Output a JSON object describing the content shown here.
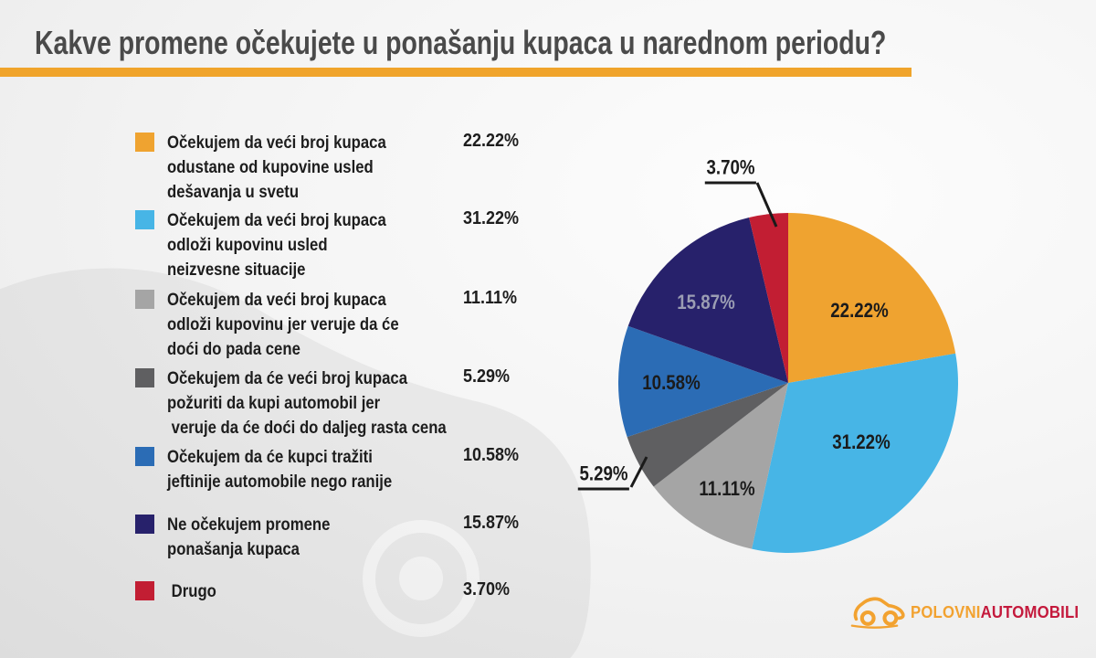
{
  "title": "Kakve promene očekujete u ponašanju kupaca u narednom periodu?",
  "accent_color": "#F0A42B",
  "chart_data": {
    "type": "pie",
    "title": "Kakve promene očekujete u ponašanju kupaca u narednom periodu?",
    "direction": "clockwise",
    "start_angle_deg": 0,
    "slices": [
      {
        "label": "Očekujem da veći broj kupaca odustane od kupovine usled dešavanja u svetu",
        "value": 22.22,
        "display": "22.22%",
        "color": "#EFA330",
        "label_color": "#1b1b1b"
      },
      {
        "label": "Očekujem da veći broj kupaca odloži kupovinu usled neizvesne situacije",
        "value": 31.22,
        "display": "31.22%",
        "color": "#47B5E6",
        "label_color": "#1b1b1b"
      },
      {
        "label": "Očekujem da veći broj kupaca odloži kupovinu jer veruje da će doći do pada cene",
        "value": 11.11,
        "display": "11.11%",
        "color": "#A5A5A5",
        "label_color": "#1b1b1b"
      },
      {
        "label": "Očekujem da će veći broj kupaca požuriti da kupi automobil jer veruje da će doći do daljeg rasta cena",
        "value": 5.29,
        "display": "5.29%",
        "color": "#5F5F61",
        "label_color": "#1b1b1b"
      },
      {
        "label": "Očekujem da će kupci tražiti jeftinije automobile nego ranije",
        "value": 10.58,
        "display": "10.58%",
        "color": "#2B6CB5",
        "label_color": "#1b1b1b"
      },
      {
        "label": "Ne očekujem promene ponašanja kupaca",
        "value": 15.87,
        "display": "15.87%",
        "color": "#27216B",
        "label_color": "#9B9DB3"
      },
      {
        "label": "Drugo",
        "value": 3.7,
        "display": "3.70%",
        "color": "#C21E33",
        "label_color": "#1b1b1b"
      }
    ]
  },
  "legend": {
    "items": [
      {
        "lines": [
          "Očekujem da veći broj kupaca",
          "odustane od kupovine usled",
          "dešavanja u svetu"
        ],
        "value": "22.22%"
      },
      {
        "lines": [
          "Očekujem da veći broj kupaca",
          "odloži kupovinu usled",
          "neizvesne situacije"
        ],
        "value": "31.22%"
      },
      {
        "lines": [
          "Očekujem da veći broj kupaca",
          "odloži kupovinu jer veruje da će",
          "doći do pada cene"
        ],
        "value": "11.11%"
      },
      {
        "lines": [
          "Očekujem da će veći broj kupaca",
          "požuriti da kupi automobil jer",
          " veruje da će doći do daljeg rasta cena"
        ],
        "value": "5.29%"
      },
      {
        "lines": [
          "Očekujem da će kupci tražiti",
          "jeftinije automobile nego ranije"
        ],
        "value": "10.58%"
      },
      {
        "lines": [
          "Ne očekujem promene",
          "ponašanja kupaca"
        ],
        "value": "15.87%"
      },
      {
        "lines": [
          " Drugo"
        ],
        "value": "3.70%"
      }
    ]
  },
  "logo": {
    "brand_primary": "POLOVNI",
    "brand_secondary": "AUTOMOBILI",
    "primary_color": "#F2A230",
    "secondary_color": "#C4193C"
  }
}
